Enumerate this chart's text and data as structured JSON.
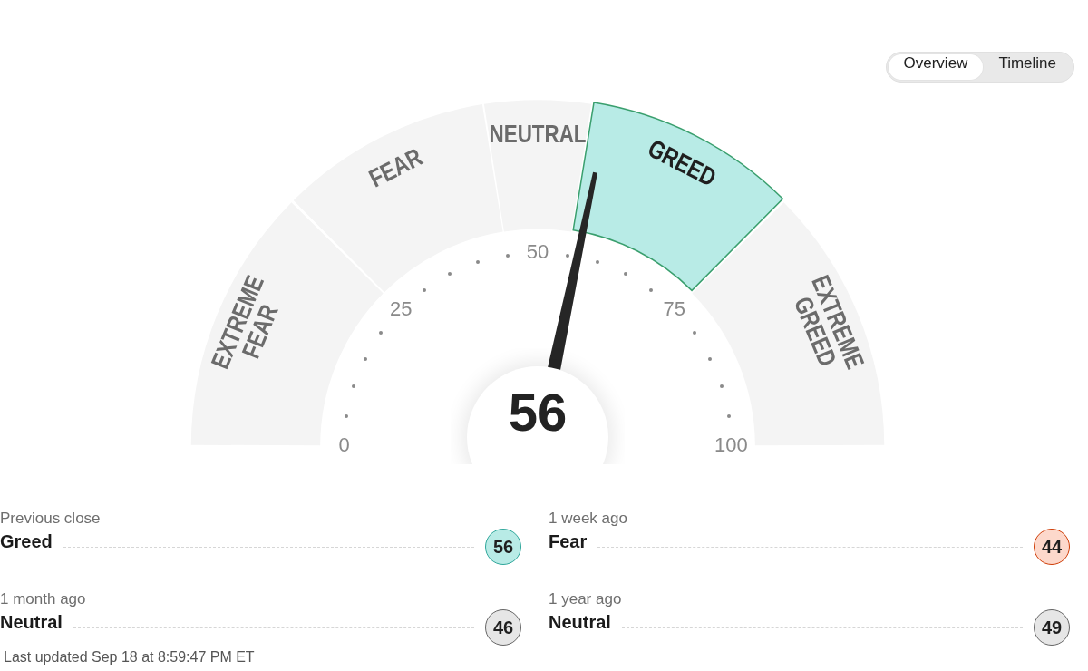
{
  "chart_data": [
    {
      "type": "other",
      "annotations": [
        "Overview",
        "Timeline"
      ]
    },
    {
      "type": "donut",
      "categories": [
        "EXTREME FEAR",
        "FEAR",
        "NEUTRAL",
        "GREED",
        "EXTREME GREED"
      ],
      "values": [
        25,
        20,
        10,
        20,
        25
      ],
      "colors": [
        "#f4f4f4",
        "#f4f4f4",
        "#f4f4f4",
        "#b8ebe6",
        "#f4f4f4"
      ],
      "needle": "GREED",
      "annotations": [
        "56",
        "0",
        "25",
        "50",
        "75",
        "100"
      ]
    },
    {
      "type": "other",
      "categories": [
        "Previous close"
      ],
      "values": [
        56
      ],
      "colors": [
        "#b8ebe6"
      ],
      "data_labels": true,
      "annotations": [
        "Greed"
      ]
    },
    {
      "type": "other",
      "categories": [
        "1 week ago"
      ],
      "values": [
        44
      ],
      "colors": [
        "#fdd8cb"
      ],
      "data_labels": true,
      "annotations": [
        "Fear"
      ]
    },
    {
      "type": "other",
      "categories": [
        "1 month ago"
      ],
      "values": [
        46
      ],
      "colors": [
        "#e6e6e6"
      ],
      "data_labels": true,
      "annotations": [
        "Neutral",
        "Last updated Sep 18 at 8:59:47 PM ET"
      ]
    },
    {
      "type": "other",
      "categories": [
        "1 year ago"
      ],
      "values": [
        49
      ],
      "colors": [
        "#e6e6e6"
      ],
      "data_labels": true,
      "annotations": [
        "Neutral"
      ]
    }
  ]
}
